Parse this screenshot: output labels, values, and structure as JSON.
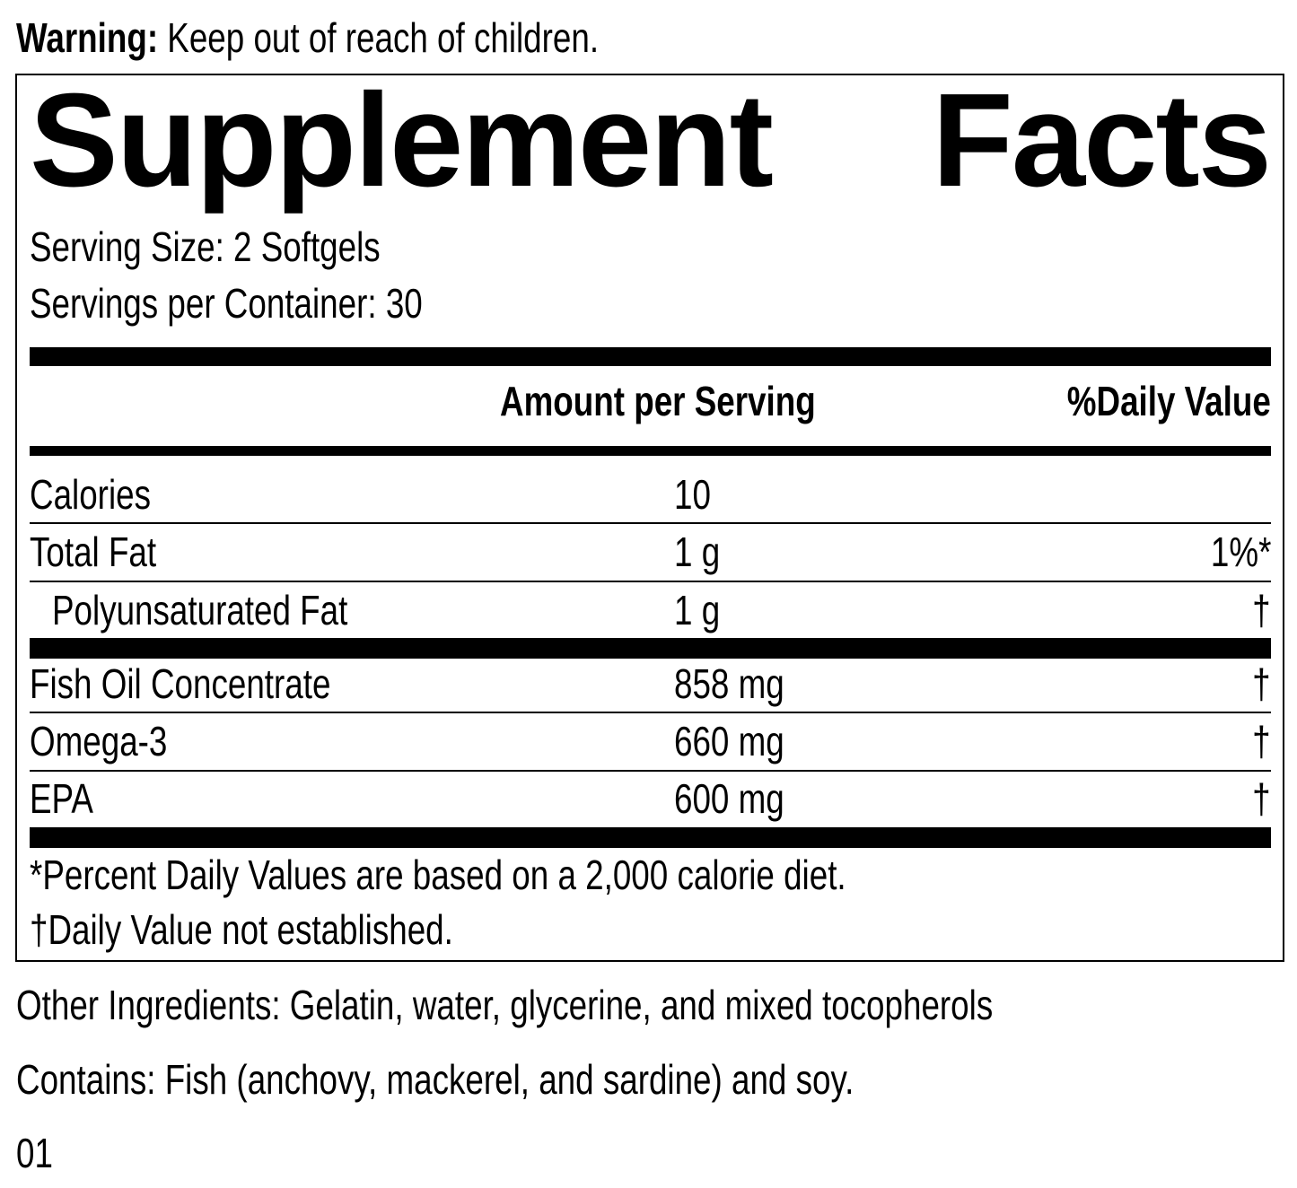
{
  "warning": {
    "label": "Warning:",
    "text": "Keep out of reach of children."
  },
  "facts": {
    "title": "Supplement Facts",
    "serving_size": "Serving Size: 2 Softgels",
    "servings_per_container": "Servings per Container: 30",
    "headers": [
      "Amount per Serving",
      "%Daily Value"
    ],
    "rows": [
      {
        "name": "Calories",
        "amount": "10"
      },
      {
        "name": "Total Fat",
        "amount": "1 g",
        "daily_value": "1%*"
      },
      {
        "name": "Polyunsaturated Fat",
        "amount": "1 g",
        "daily_value": "†"
      },
      {
        "name": "Fish Oil Concentrate",
        "amount": "858 mg",
        "daily_value": "†"
      },
      {
        "name": "Omega-3",
        "amount": "660 mg",
        "daily_value": "†"
      },
      {
        "name": "EPA",
        "amount": "600 mg",
        "daily_value": "†"
      }
    ],
    "footnotes": [
      "*Percent Daily Values are based on a 2,000 calorie diet.",
      "†Daily Value not established."
    ]
  },
  "other_ingredients": "Other Ingredients: Gelatin, water, glycerine, and mixed tocopherols",
  "contains": "Contains: Fish (anchovy, mackerel, and sardine) and soy.",
  "code": "01"
}
